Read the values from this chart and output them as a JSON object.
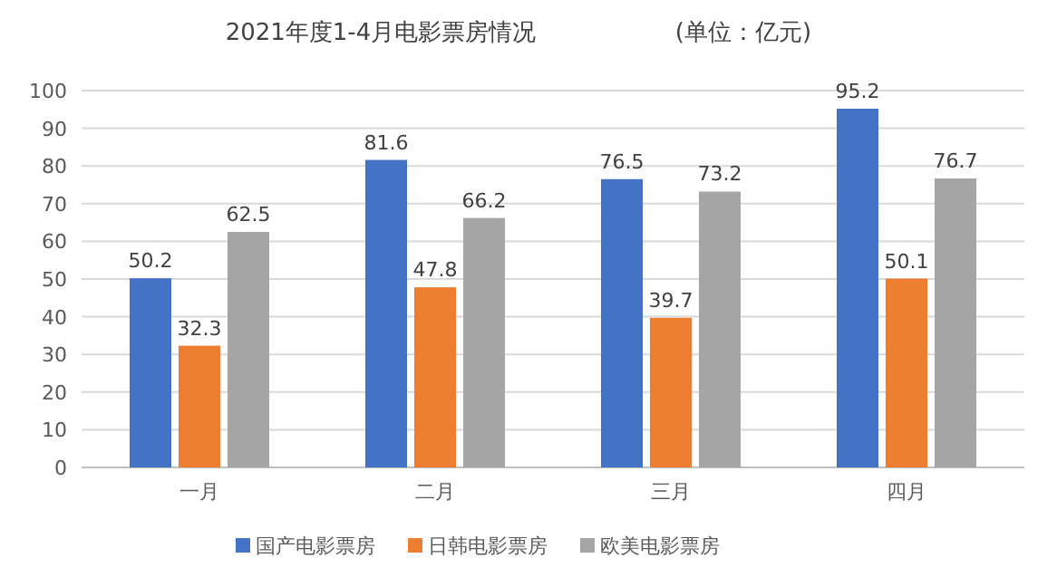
{
  "chart_data": {
    "type": "bar",
    "title": "2021年度1-4月电影票房情况",
    "subtitle": "(单位：亿元)",
    "categories": [
      "一月",
      "二月",
      "三月",
      "四月"
    ],
    "series": [
      {
        "name": "国产电影票房",
        "color": "#4472c4",
        "values": [
          50.2,
          81.6,
          76.5,
          95.2
        ]
      },
      {
        "name": "日韩电影票房",
        "color": "#ed7d31",
        "values": [
          32.3,
          47.8,
          39.7,
          50.1
        ]
      },
      {
        "name": "欧美电影票房",
        "color": "#a5a5a5",
        "values": [
          62.5,
          66.2,
          73.2,
          76.7
        ]
      }
    ],
    "ylim": [
      0,
      100
    ],
    "yticks": [
      0,
      10,
      20,
      30,
      40,
      50,
      60,
      70,
      80,
      90,
      100
    ],
    "grid": "y",
    "legend": "bottom",
    "data_labels": true
  }
}
